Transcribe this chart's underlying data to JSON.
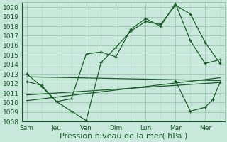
{
  "xlabel": "Pression niveau de la mer( hPa )",
  "ylim": [
    1008,
    1020.5
  ],
  "yticks": [
    1008,
    1009,
    1010,
    1011,
    1012,
    1013,
    1014,
    1015,
    1016,
    1017,
    1018,
    1019,
    1020
  ],
  "day_labels": [
    "Sam",
    "Jeu",
    "Ven",
    "Dim",
    "Lun",
    "Mar",
    "Mer"
  ],
  "day_positions": [
    0,
    2,
    4,
    6,
    8,
    10,
    12
  ],
  "xlim": [
    -0.3,
    13.3
  ],
  "bg_color": "#c8e8dc",
  "grid_color_minor": "#b0d4c4",
  "grid_color_major": "#99bfad",
  "line_color": "#1a5c28",
  "xlabel_fontsize": 8,
  "tick_fontsize": 6.5,
  "line_width": 0.9,
  "marker_size": 3.5,
  "series1_x": [
    0,
    1,
    2,
    3,
    4,
    5,
    6,
    7,
    8,
    9,
    10,
    11,
    12,
    13
  ],
  "series1_y": [
    1013.0,
    1011.7,
    1010.1,
    1009.1,
    1008.1,
    1014.2,
    1015.8,
    1017.5,
    1018.5,
    1018.2,
    1020.2,
    1019.3,
    1016.3,
    1014.1
  ],
  "series2_x": [
    0,
    1,
    2,
    3,
    4,
    5,
    6,
    7,
    8,
    9,
    10,
    11,
    12,
    13
  ],
  "series2_y": [
    1012.2,
    1011.8,
    1010.1,
    1010.4,
    1015.1,
    1015.3,
    1014.8,
    1017.7,
    1018.8,
    1018.0,
    1020.4,
    1016.5,
    1014.1,
    1014.5
  ],
  "trend1_x": [
    0,
    13
  ],
  "trend1_y": [
    1012.7,
    1012.3
  ],
  "trend2_x": [
    0,
    13
  ],
  "trend2_y": [
    1010.8,
    1012.1
  ],
  "trend3_x": [
    0,
    13
  ],
  "trend3_y": [
    1010.2,
    1012.6
  ],
  "end_series_x": [
    10,
    11,
    12,
    12.5,
    13
  ],
  "end_series_y": [
    1012.3,
    1009.1,
    1009.5,
    1010.3,
    1012.1
  ]
}
